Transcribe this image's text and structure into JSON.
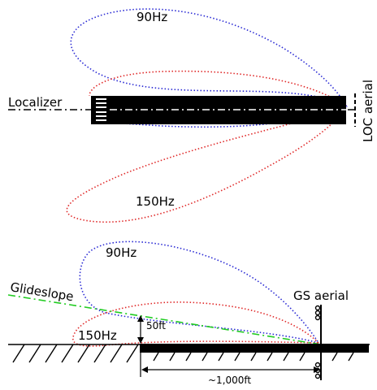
{
  "localizer_view": {
    "pattern_90_label": "90Hz",
    "pattern_150_label": "150Hz",
    "localizer_label": "Localizer",
    "aerial_label": "LOC aerial"
  },
  "glideslope_view": {
    "pattern_90_label": "90Hz",
    "pattern_150_label": "150Hz",
    "glideslope_label": "Glideslope",
    "aerial_label": "GS aerial",
    "height_label": "50ft",
    "distance_label": "~1,000ft"
  },
  "colors": {
    "pattern_90": "#2a2ad4",
    "pattern_150": "#e02a2a",
    "glidepath": "#22cc22",
    "runway": "#000000",
    "ground": "#000000"
  }
}
